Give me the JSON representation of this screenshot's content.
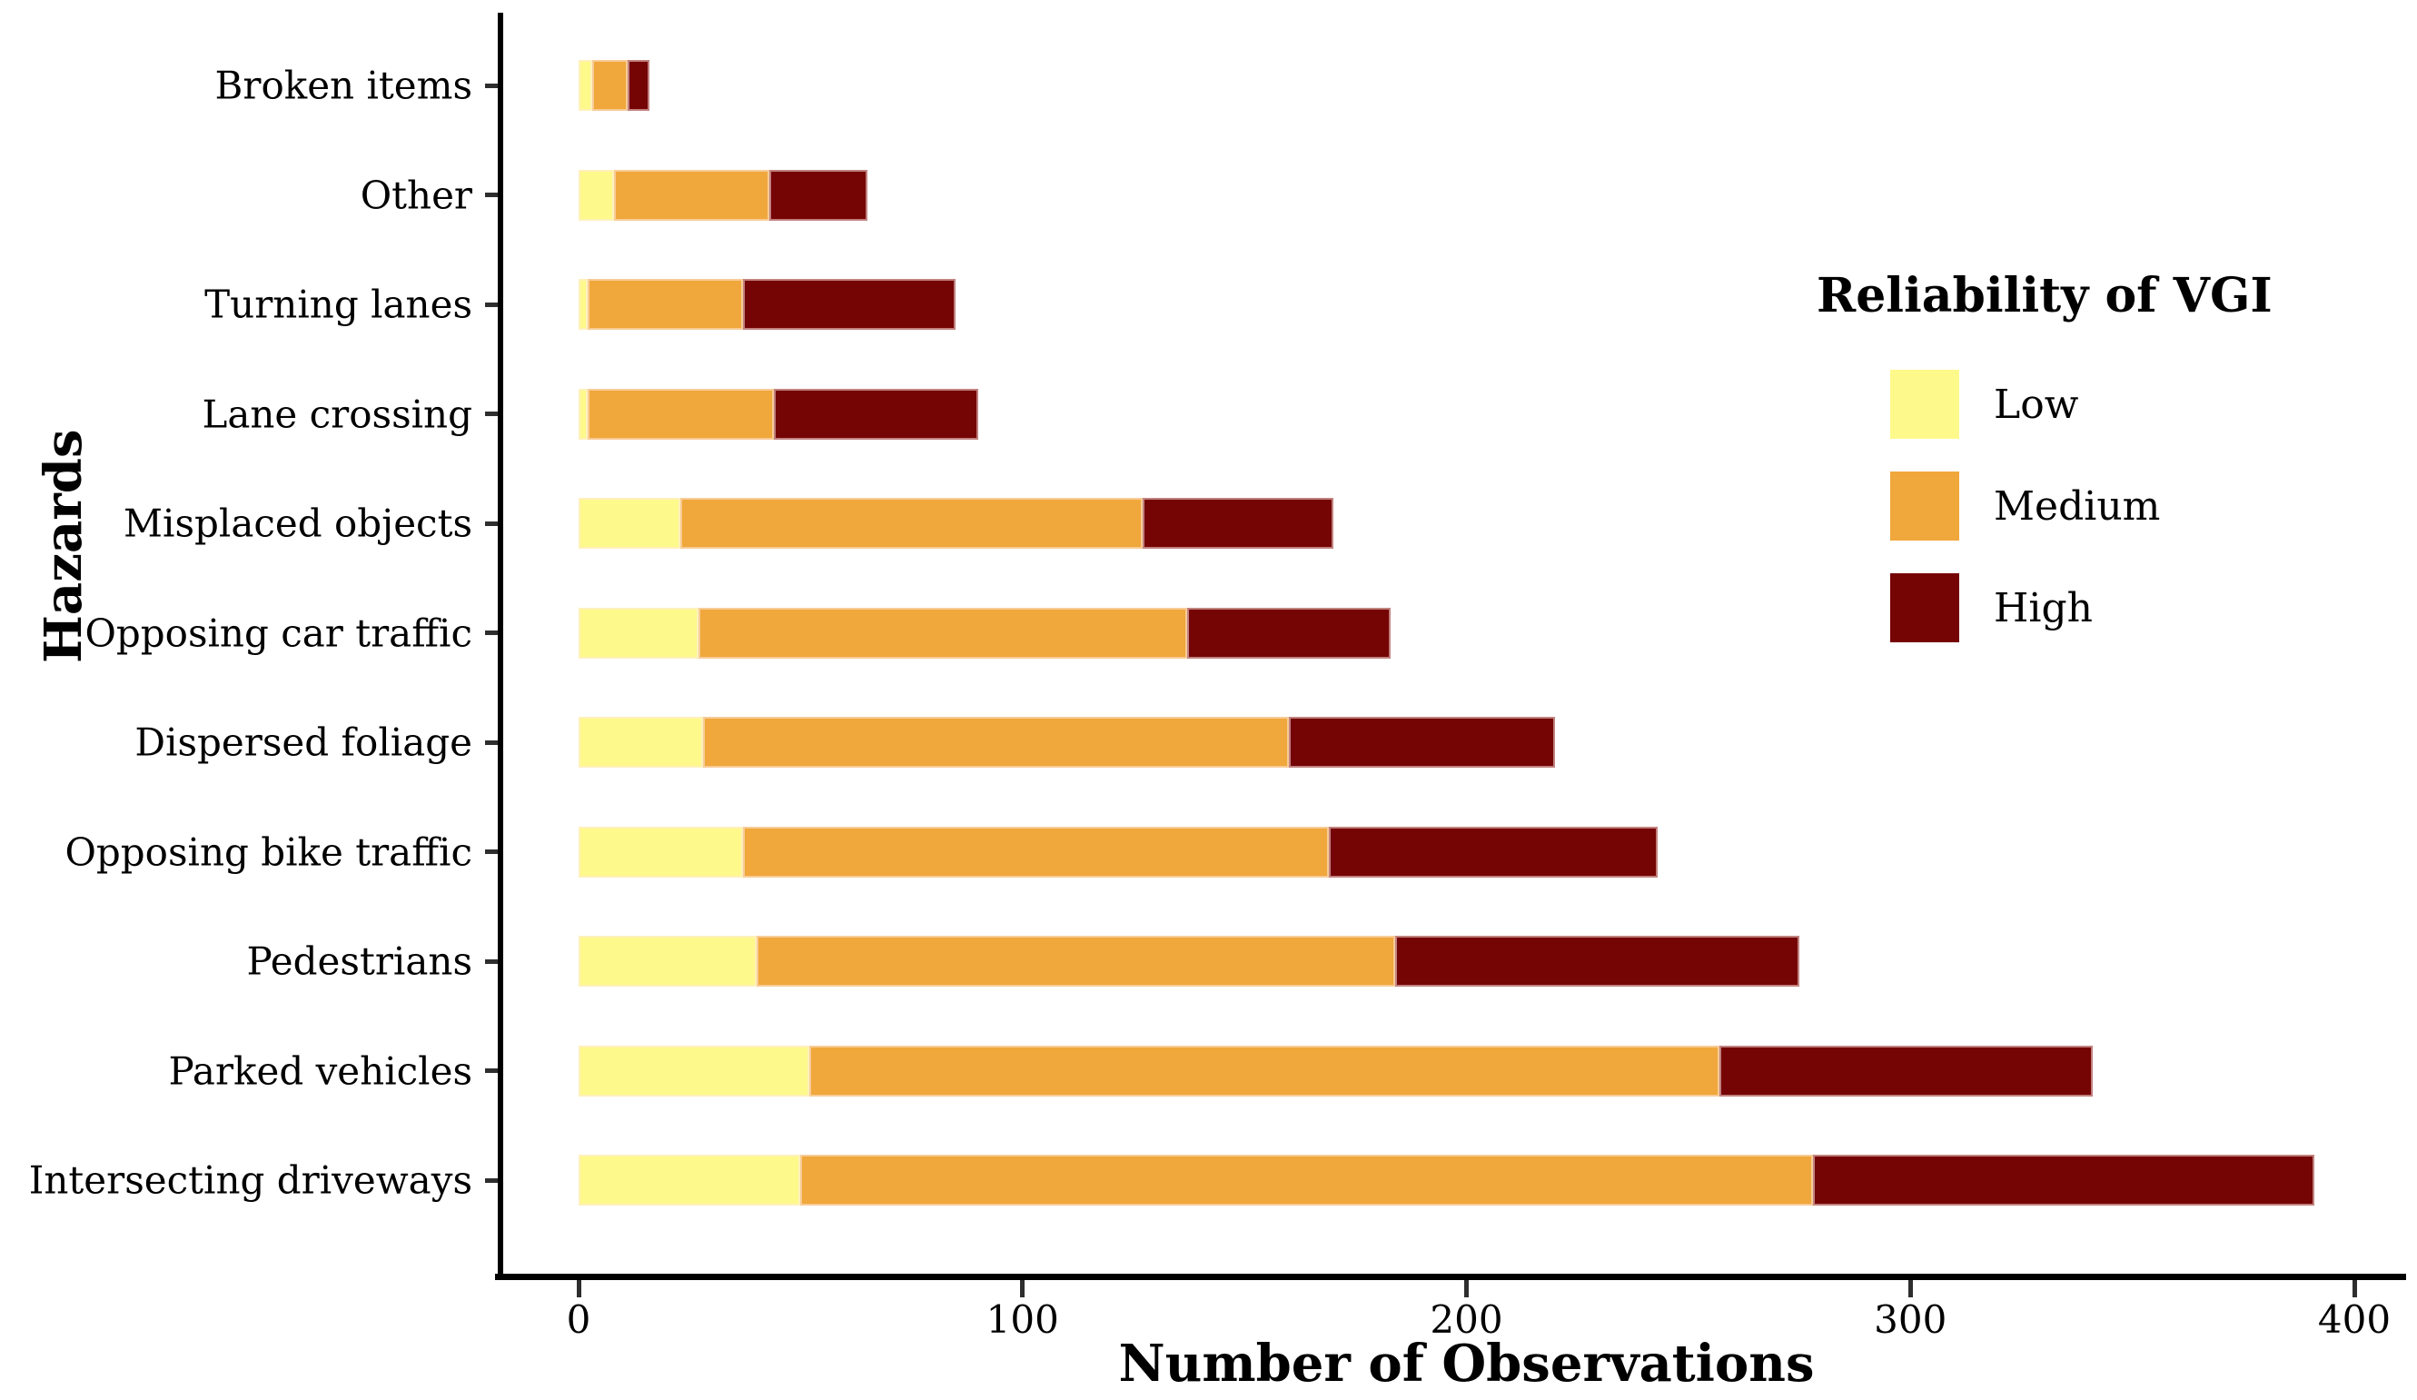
{
  "chart_data": {
    "type": "bar",
    "orientation": "horizontal",
    "stacked": true,
    "title": "",
    "xlabel": "Number of Observations",
    "ylabel": "Hazards",
    "xlim": [
      0,
      400
    ],
    "x_ticks": [
      "0",
      "100",
      "200",
      "300",
      "400"
    ],
    "grid": false,
    "legend": {
      "title": "Reliability of VGI",
      "position": "upper-right-inside",
      "entries": [
        {
          "label": "Low",
          "color": "#FEF98B"
        },
        {
          "label": "Medium",
          "color": "#F0A73B"
        },
        {
          "label": "High",
          "color": "#750405"
        }
      ]
    },
    "categories": [
      "Broken items",
      "Other",
      "Turning lanes",
      "Lane crossing",
      "Misplaced objects",
      "Opposing car traffic",
      "Dispersed foliage",
      "Opposing bike traffic",
      "Pedestrians",
      "Parked vehicles",
      "Intersecting driveways"
    ],
    "series": [
      {
        "name": "Low",
        "color": "#FEF98B",
        "values": [
          3,
          8,
          2,
          2,
          23,
          27,
          28,
          37,
          40,
          52,
          50
        ]
      },
      {
        "name": "Medium",
        "color": "#F0A73B",
        "values": [
          8,
          35,
          35,
          42,
          104,
          110,
          132,
          132,
          144,
          205,
          228
        ]
      },
      {
        "name": "High",
        "color": "#750405",
        "values": [
          5,
          22,
          48,
          46,
          43,
          46,
          60,
          74,
          91,
          84,
          113
        ]
      }
    ],
    "totals": [
      16,
      65,
      85,
      90,
      170,
      183,
      220,
      243,
      275,
      341,
      391
    ],
    "colors": {
      "axis": "#000000",
      "tick": "#2e2e2e",
      "text": "#000000",
      "background": "#ffffff"
    }
  }
}
